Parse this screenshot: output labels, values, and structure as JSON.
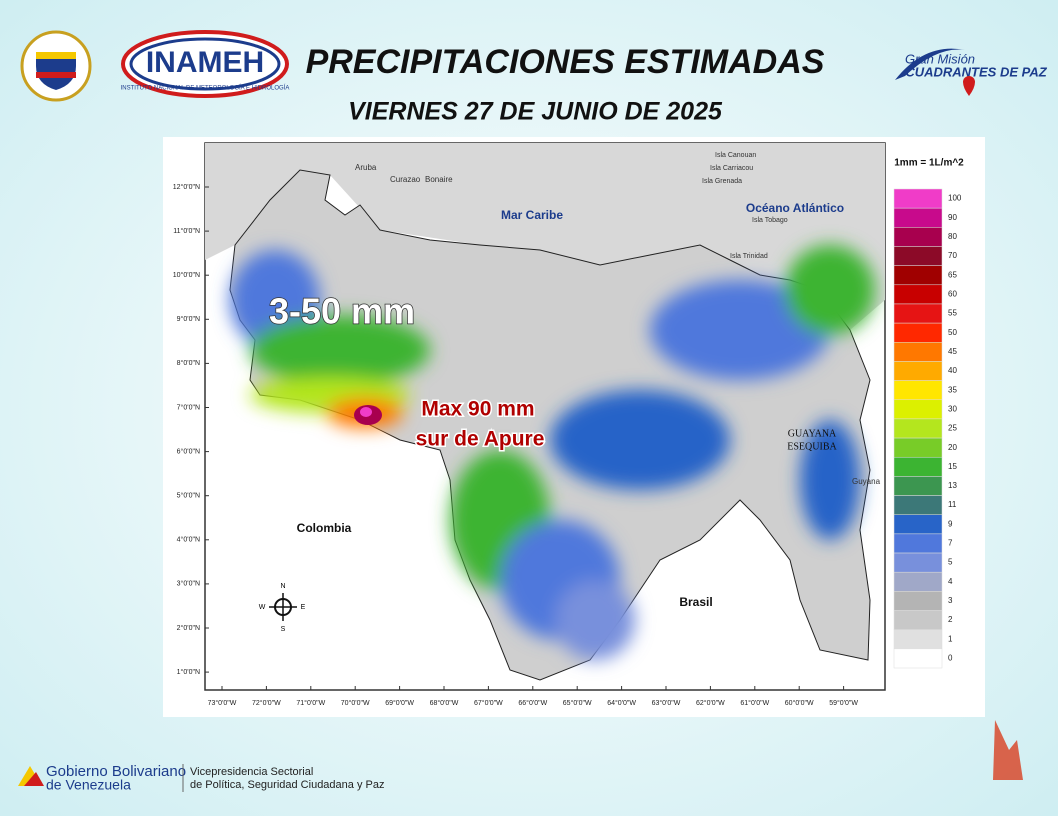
{
  "header": {
    "title": "PRECIPITACIONES ESTIMADAS",
    "date": "VIERNES 27 DE JUNIO DE 2025",
    "logo_left": "INAMEH",
    "logo_left_sub": "INSTITUTO NACIONAL DE METEOROLOGÍA E HIDROLOGÍA",
    "logo_right_top": "Gran Misión",
    "logo_right_bottom": "CUADRANTES DE PAZ"
  },
  "map": {
    "places": [
      "Aruba",
      "Curazao",
      "Bonaire",
      "Isla Canouan",
      "Isla Carriacou",
      "Isla Grenada",
      "Isla Tobago",
      "Isla Trinidad",
      "Mar Caribe",
      "Océano Atlántico",
      "GUAYANA",
      "ESEQUIBA",
      "Guyana",
      "Colombia",
      "Brasil"
    ],
    "compass": [
      "N",
      "S",
      "E",
      "W"
    ],
    "annotations": [
      "3-50 mm",
      "Max 90 mm",
      "sur de Apure"
    ],
    "lat_labels": [
      "12°0'0\"N",
      "11°0'0\"N",
      "10°0'0\"N",
      "9°0'0\"N",
      "8°0'0\"N",
      "7°0'0\"N",
      "6°0'0\"N",
      "5°0'0\"N",
      "4°0'0\"N",
      "3°0'0\"N",
      "2°0'0\"N",
      "1°0'0\"N"
    ],
    "lon_labels": [
      "73°0'0\"W",
      "72°0'0\"W",
      "71°0'0\"W",
      "70°0'0\"W",
      "69°0'0\"W",
      "68°0'0\"W",
      "67°0'0\"W",
      "66°0'0\"W",
      "65°0'0\"W",
      "64°0'0\"W",
      "63°0'0\"W",
      "62°0'0\"W",
      "61°0'0\"W",
      "60°0'0\"W",
      "59°0'0\"W"
    ]
  },
  "legend": {
    "title": "1mm = 1L/m^2",
    "levels": [
      100,
      90,
      80,
      70,
      65,
      60,
      55,
      50,
      45,
      40,
      35,
      30,
      25,
      20,
      15,
      13,
      11,
      9,
      7,
      5,
      4,
      3,
      2,
      1,
      0
    ],
    "colors": [
      "#f03cc8",
      "#c80a8c",
      "#a8004e",
      "#8c0a28",
      "#a00000",
      "#c80000",
      "#e61414",
      "#ff2800",
      "#ff7800",
      "#ffaa00",
      "#ffe600",
      "#dcf000",
      "#b4e61e",
      "#78cc28",
      "#3cb432",
      "#3c9650",
      "#3c7878",
      "#2864c8",
      "#5078dc",
      "#7890dc",
      "#a0a8c8",
      "#b4b4b4",
      "#c8c8c8",
      "#e0e0e0",
      "#ffffff"
    ]
  },
  "footer": {
    "gov_line1": "Gobierno Bolivariano",
    "gov_line2": "de Venezuela",
    "vice_line1": "Vicepresidencia Sectorial",
    "vice_line2": "de Política, Seguridad Ciudadana y Paz"
  }
}
